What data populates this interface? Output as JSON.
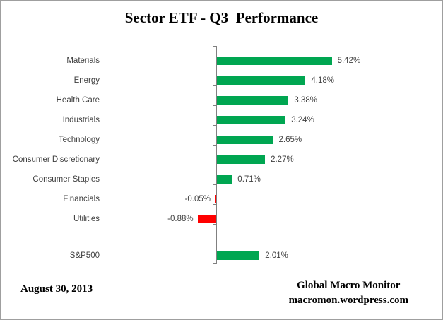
{
  "title": "Sector ETF - Q3  Performance",
  "chart_data": {
    "type": "bar",
    "orientation": "horizontal",
    "title": "Sector ETF - Q3  Performance",
    "categories": [
      "Materials",
      "Energy",
      "Health Care",
      "Industrials",
      "Technology",
      "Consumer Discretionary",
      "Consumer Staples",
      "Financials",
      "Utilities",
      "S&P500"
    ],
    "values": [
      5.42,
      4.18,
      3.38,
      3.24,
      2.65,
      2.27,
      0.71,
      -0.05,
      -0.88,
      2.01
    ],
    "value_labels": [
      "5.42%",
      "4.18%",
      "3.38%",
      "3.24%",
      "2.65%",
      "2.27%",
      "0.71%",
      "-0.05%",
      "-0.88%",
      "2.01%"
    ],
    "benchmark_category": "S&P500",
    "legend": "none",
    "grid": false,
    "positive_color": "#00A651",
    "negative_color": "#FF0000",
    "axis_color": "#808080",
    "label_color": "#3f3f3f"
  },
  "footer": {
    "date": "August 30, 2013",
    "attribution_line1": "Global Macro Monitor",
    "attribution_line2": "macromon.wordpress.com"
  }
}
